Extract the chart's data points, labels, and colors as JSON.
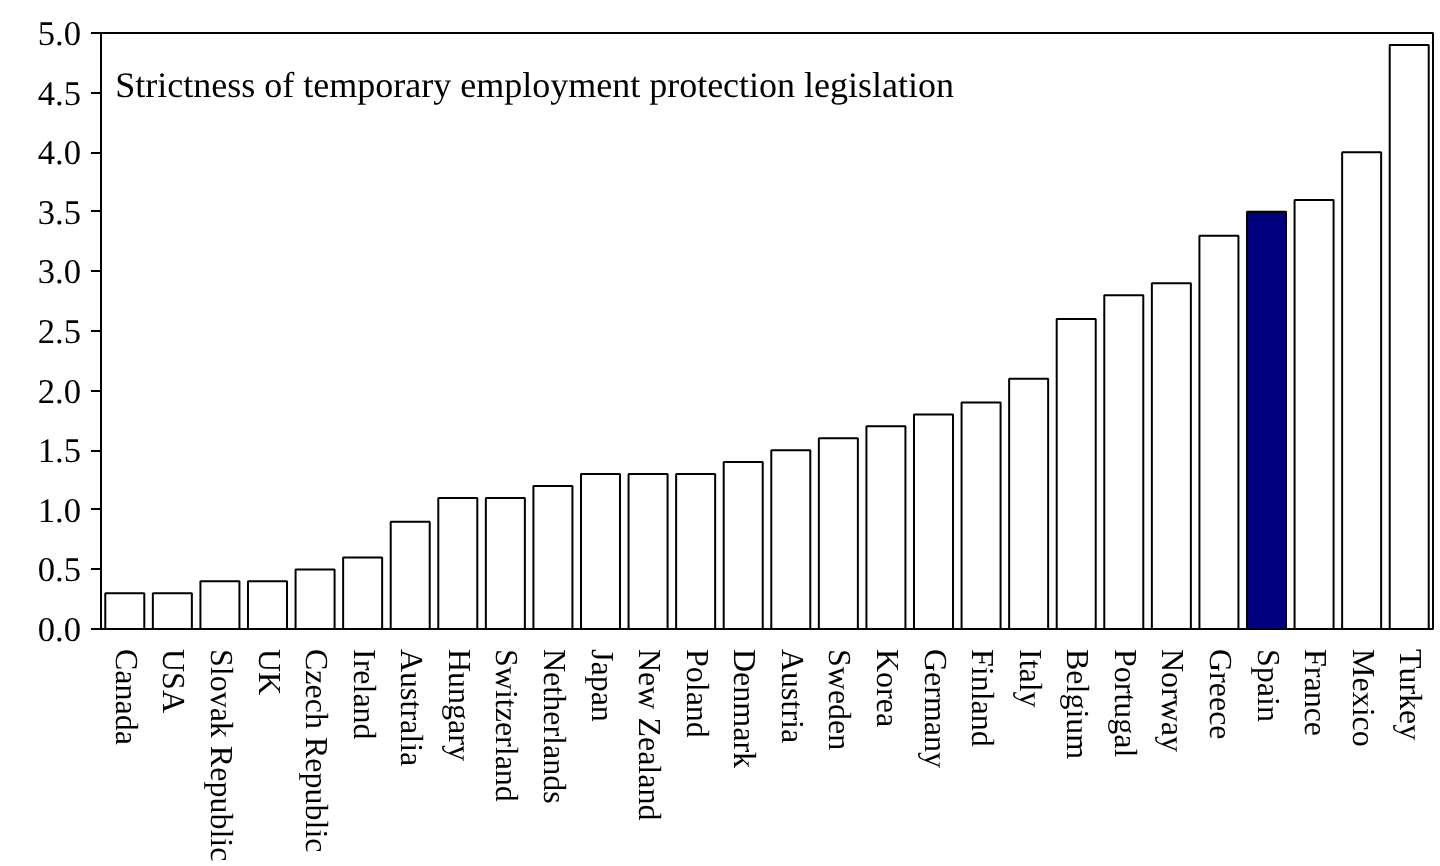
{
  "chart_data": {
    "type": "bar",
    "title": "Strictness of temporary employment protection legislation",
    "categories": [
      "Canada",
      "USA",
      "Slovak Republic",
      "UK",
      "Czech Republic",
      "Ireland",
      "Australia",
      "Hungary",
      "Switzerland",
      "Netherlands",
      "Japan",
      "New Zealand",
      "Poland",
      "Denmark",
      "Austria",
      "Sweden",
      "Korea",
      "Germany",
      "Finland",
      "Italy",
      "Belgium",
      "Portugal",
      "Norway",
      "Greece",
      "Spain",
      "France",
      "Mexico",
      "Turkey"
    ],
    "values": [
      0.3,
      0.3,
      0.4,
      0.4,
      0.5,
      0.6,
      0.9,
      1.1,
      1.1,
      1.2,
      1.3,
      1.3,
      1.3,
      1.4,
      1.5,
      1.6,
      1.7,
      1.8,
      1.9,
      2.1,
      2.6,
      2.8,
      2.9,
      3.3,
      3.5,
      3.6,
      4.0,
      4.9
    ],
    "colors": [
      "#ffffff",
      "#ffffff",
      "#ffffff",
      "#ffffff",
      "#ffffff",
      "#ffffff",
      "#ffffff",
      "#ffffff",
      "#ffffff",
      "#ffffff",
      "#ffffff",
      "#ffffff",
      "#ffffff",
      "#ffffff",
      "#ffffff",
      "#ffffff",
      "#ffffff",
      "#ffffff",
      "#ffffff",
      "#ffffff",
      "#ffffff",
      "#ffffff",
      "#ffffff",
      "#ffffff",
      "#000080",
      "#ffffff",
      "#ffffff",
      "#ffffff"
    ],
    "ylim": [
      0,
      5.0
    ],
    "yticks": [
      {
        "value": 0,
        "label": "0.0"
      },
      {
        "value": 0.5,
        "label": "0.5"
      },
      {
        "value": 1.0,
        "label": "1.0"
      },
      {
        "value": 1.5,
        "label": "1.5"
      },
      {
        "value": 2.0,
        "label": "2.0"
      },
      {
        "value": 2.5,
        "label": "2.5"
      },
      {
        "value": 3.0,
        "label": "3.0"
      },
      {
        "value": 3.5,
        "label": "3.5"
      },
      {
        "value": 4.0,
        "label": "4.0"
      },
      {
        "value": 4.5,
        "label": "4.5"
      },
      {
        "value": 5.0,
        "label": "5.0"
      }
    ],
    "grid": false
  }
}
